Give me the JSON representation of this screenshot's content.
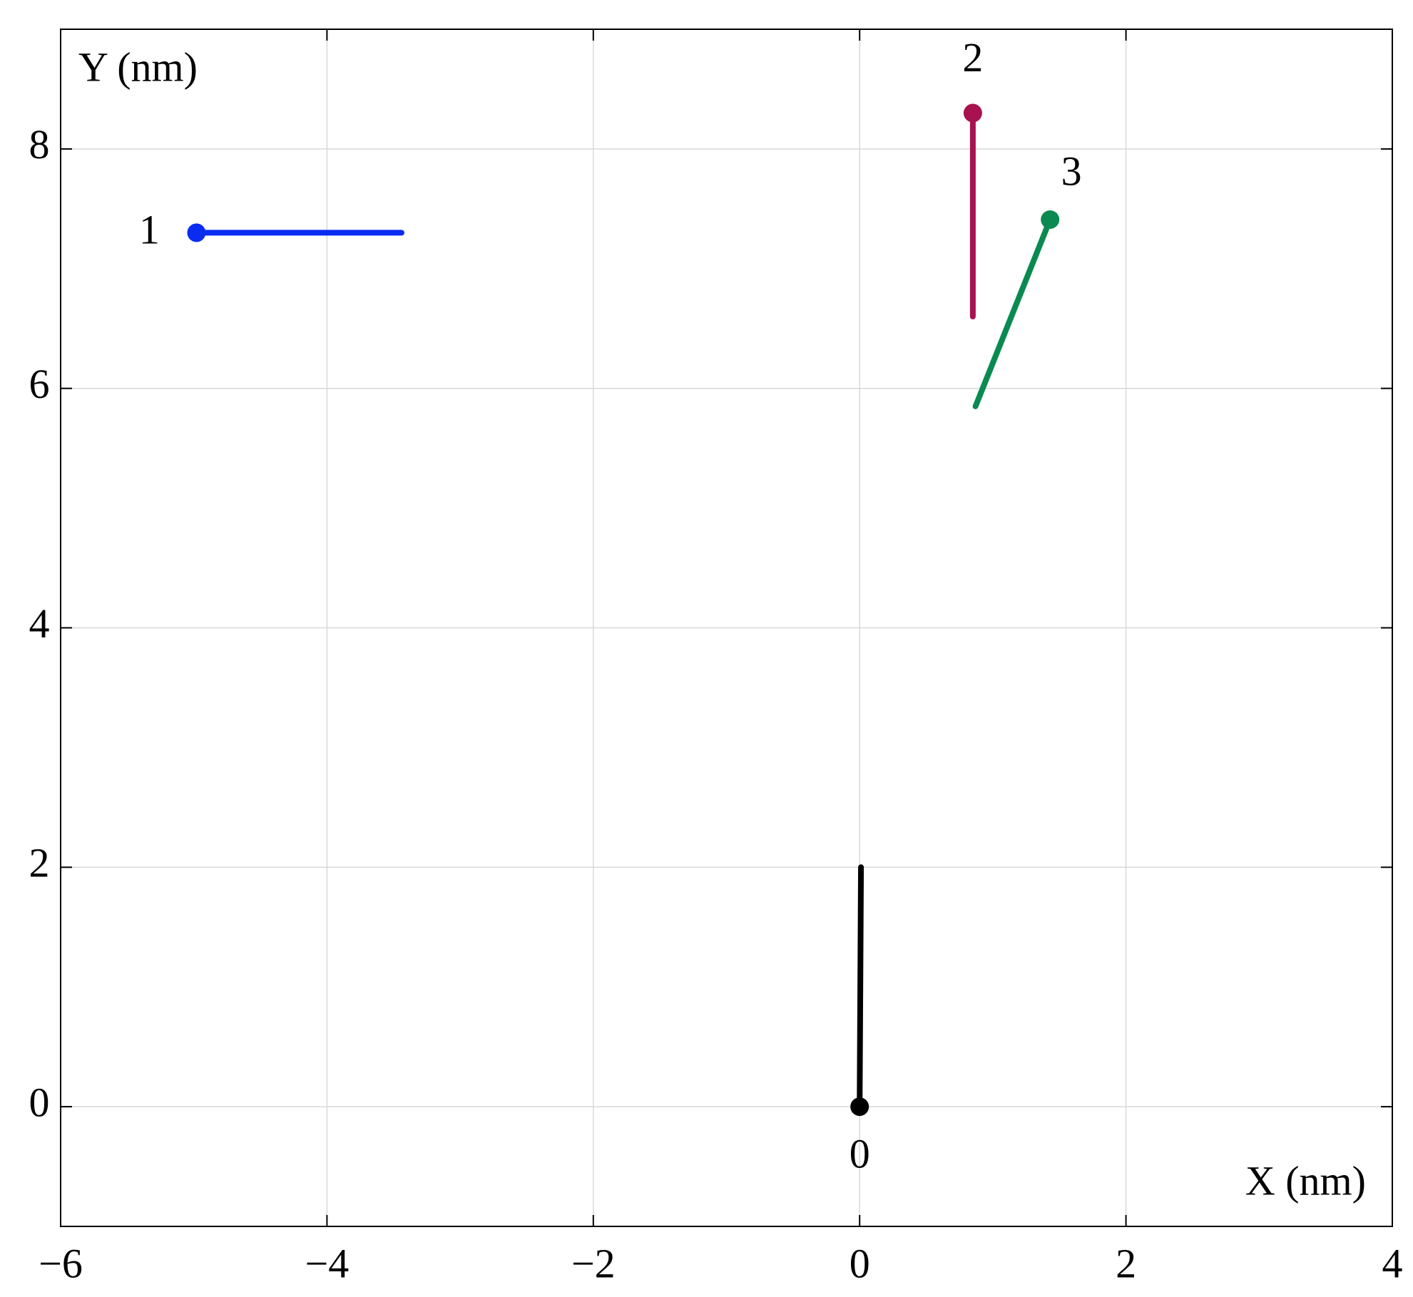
{
  "chart_data": {
    "type": "line",
    "x_label": "X (nm)",
    "y_label": "Y (nm)",
    "xlim": [
      -6,
      4
    ],
    "ylim": [
      -1,
      9
    ],
    "xticks": [
      {
        "value": -6,
        "label": "−6"
      },
      {
        "value": -4,
        "label": "−4"
      },
      {
        "value": -2,
        "label": "−2"
      },
      0,
      2,
      4
    ],
    "yticks": [
      0,
      2,
      4,
      6,
      8
    ],
    "grid": true,
    "series": [
      {
        "name": "0",
        "color": "#000000",
        "x": [
          0,
          0.01
        ],
        "values": [
          0,
          2.0
        ]
      },
      {
        "name": "1",
        "color": "#0a2cf0",
        "x": [
          -4.98,
          -3.44
        ],
        "values": [
          7.3,
          7.3
        ]
      },
      {
        "name": "2",
        "color": "#a8124f",
        "x": [
          0.85,
          0.85
        ],
        "values": [
          8.3,
          6.6
        ]
      },
      {
        "name": "3",
        "color": "#0a8a50",
        "x": [
          1.43,
          0.87
        ],
        "values": [
          7.41,
          5.85
        ]
      }
    ]
  }
}
